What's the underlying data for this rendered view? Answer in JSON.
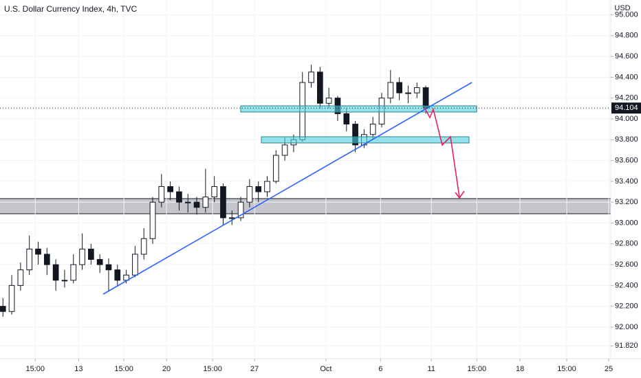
{
  "chart_data": {
    "type": "candlestick",
    "title": "U.S. Dollar Currency Index, 4h, TVC",
    "y_unit": "USD",
    "x": [
      0,
      3,
      6,
      9,
      12,
      15,
      18,
      21,
      24,
      27,
      30,
      33,
      36,
      39,
      42,
      45,
      48,
      51,
      54,
      57,
      60,
      63,
      66,
      69,
      72,
      75,
      78,
      81,
      84,
      87,
      90,
      93,
      96,
      99,
      102,
      105,
      108,
      111,
      114,
      117,
      120,
      123,
      126,
      129,
      132,
      135,
      138,
      141,
      144
    ],
    "open": [
      92.2,
      92.15,
      92.4,
      92.55,
      92.75,
      92.7,
      92.6,
      92.45,
      92.45,
      92.6,
      92.75,
      92.65,
      92.6,
      92.55,
      92.45,
      92.5,
      92.7,
      92.85,
      93.2,
      93.35,
      93.3,
      93.2,
      93.2,
      93.15,
      93.25,
      93.35,
      93.05,
      93.05,
      93.2,
      93.35,
      93.3,
      93.4,
      93.65,
      93.75,
      93.8,
      94.35,
      94.45,
      94.15,
      94.2,
      94.05,
      93.95,
      93.75,
      93.85,
      93.95,
      94.2,
      94.35,
      94.25,
      94.25,
      94.3
    ],
    "high": [
      92.28,
      92.5,
      92.62,
      92.88,
      92.82,
      92.76,
      92.65,
      92.55,
      92.7,
      92.9,
      92.8,
      92.7,
      92.66,
      92.6,
      92.55,
      92.78,
      92.95,
      93.25,
      93.47,
      93.4,
      93.35,
      93.28,
      93.25,
      93.52,
      93.45,
      93.38,
      93.12,
      93.25,
      93.42,
      93.4,
      93.45,
      93.7,
      93.82,
      93.85,
      94.45,
      94.52,
      94.5,
      94.3,
      94.22,
      94.1,
      93.98,
      93.9,
      94.02,
      94.25,
      94.47,
      94.4,
      94.32,
      94.35,
      94.32
    ],
    "low": [
      92.1,
      92.12,
      92.35,
      92.5,
      92.6,
      92.5,
      92.35,
      92.38,
      92.42,
      92.55,
      92.6,
      92.52,
      92.34,
      92.4,
      92.42,
      92.48,
      92.65,
      92.8,
      93.15,
      93.22,
      93.12,
      93.1,
      93.08,
      93.1,
      93.2,
      92.98,
      92.98,
      93.02,
      93.15,
      93.2,
      93.25,
      93.38,
      93.6,
      93.68,
      93.78,
      94.3,
      94.1,
      94.1,
      93.98,
      93.88,
      93.68,
      93.72,
      93.8,
      93.92,
      94.15,
      94.18,
      94.15,
      94.2,
      94.05
    ],
    "close": [
      92.15,
      92.4,
      92.55,
      92.75,
      92.7,
      92.6,
      92.45,
      92.45,
      92.6,
      92.75,
      92.65,
      92.6,
      92.55,
      92.45,
      92.5,
      92.7,
      92.85,
      93.2,
      93.35,
      93.3,
      93.2,
      93.2,
      93.15,
      93.25,
      93.35,
      93.05,
      93.05,
      93.2,
      93.35,
      93.3,
      93.4,
      93.65,
      93.75,
      93.8,
      94.35,
      94.45,
      94.15,
      94.2,
      94.05,
      93.95,
      93.75,
      93.85,
      93.95,
      94.2,
      94.35,
      94.25,
      94.25,
      94.3,
      94.1
    ],
    "up_color": "#ffffff",
    "down_color": "#131722",
    "wick_color": "#131722",
    "last_price": 94.104,
    "xlim": [
      -1,
      207
    ],
    "xticks": [
      {
        "value": 11,
        "label": "15:00"
      },
      {
        "value": 25.8,
        "label": "13"
      },
      {
        "value": 41.2,
        "label": "15:00"
      },
      {
        "value": 55.7,
        "label": "20"
      },
      {
        "value": 71.4,
        "label": "15:00"
      },
      {
        "value": 85.7,
        "label": "27"
      },
      {
        "value": 110,
        "label": "Oct"
      },
      {
        "value": 128.6,
        "label": "6"
      },
      {
        "value": 145.9,
        "label": "11"
      },
      {
        "value": 161.4,
        "label": "15:00"
      },
      {
        "value": 176.1,
        "label": "18"
      },
      {
        "value": 192,
        "label": "15:00"
      },
      {
        "value": 206.3,
        "label": "25"
      }
    ],
    "ylim": [
      91.696,
      95.142
    ],
    "yticks": [
      {
        "value": 95,
        "label": "95.000"
      },
      {
        "value": 94.8,
        "label": "94.800"
      },
      {
        "value": 94.6,
        "label": "94.600"
      },
      {
        "value": 94.4,
        "label": "94.400"
      },
      {
        "value": 94.2,
        "label": "94.200"
      },
      {
        "value": 94,
        "label": "94.000"
      },
      {
        "value": 93.8,
        "label": "93.800"
      },
      {
        "value": 93.6,
        "label": "93.600"
      },
      {
        "value": 93.4,
        "label": "93.400"
      },
      {
        "value": 93.2,
        "label": "93.200"
      },
      {
        "value": 93,
        "label": "93.000"
      },
      {
        "value": 92.8,
        "label": "92.800"
      },
      {
        "value": 92.6,
        "label": "92.600"
      },
      {
        "value": 92.4,
        "label": "92.400"
      },
      {
        "value": 92.2,
        "label": "92.200"
      },
      {
        "value": 92,
        "label": "92.000"
      },
      {
        "value": 91.82,
        "label": "91.820"
      }
    ]
  }
}
